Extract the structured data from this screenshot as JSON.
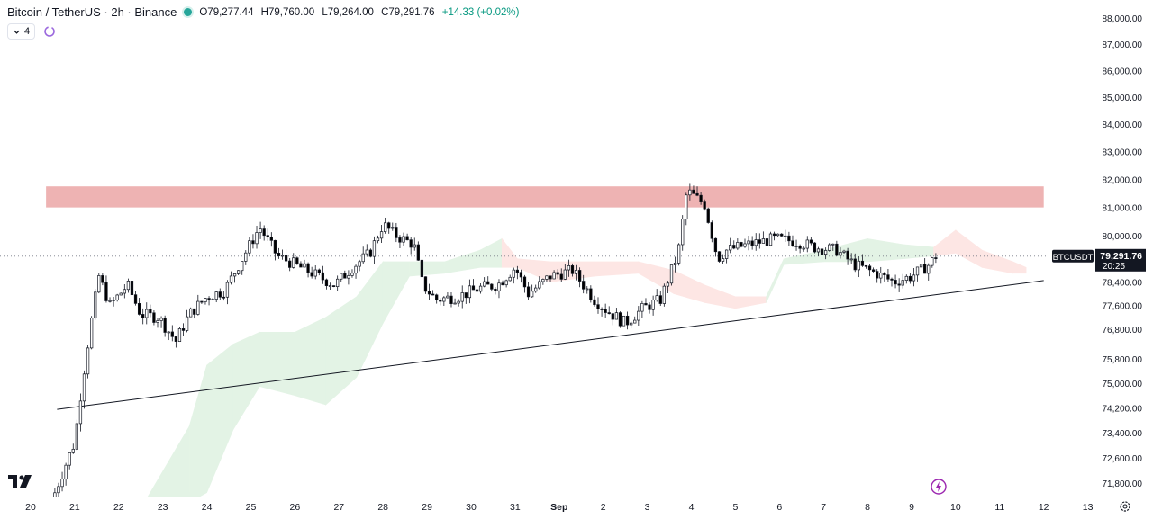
{
  "header": {
    "symbol_title": "Bitcoin / TetherUS · 2h · Binance",
    "open": "O79,277.44",
    "high": "H79,760.00",
    "low": "L79,264.00",
    "close": "C79,291.76",
    "change": "+14.33 (+0.02%)",
    "indicator_count": "4"
  },
  "price_tag": {
    "ticker": "BTCUSDT",
    "price": "79,291.76",
    "countdown": "20:25"
  },
  "colors": {
    "up": "#26a69a",
    "down": "#000000",
    "resistance_zone": "#eeb3b3",
    "cloud_bull": "#e3f3e5",
    "cloud_bear": "#fde6e4",
    "price_tag_bg": "#131722"
  },
  "chart_data": {
    "type": "candlestick",
    "title": "",
    "y_scale": "log",
    "ylim": [
      71000,
      88500
    ],
    "y_ticks": [
      {
        "value": 88000,
        "label": "88,000.00"
      },
      {
        "value": 87000,
        "label": "87,000.00"
      },
      {
        "value": 86000,
        "label": "86,000.00"
      },
      {
        "value": 85000,
        "label": "85,000.00"
      },
      {
        "value": 84000,
        "label": "84,000.00"
      },
      {
        "value": 83000,
        "label": "83,000.00"
      },
      {
        "value": 82000,
        "label": "82,000.00"
      },
      {
        "value": 81000,
        "label": "81,000.00"
      },
      {
        "value": 80000,
        "label": "80,000.00"
      },
      {
        "value": 78400,
        "label": "78,400.00"
      },
      {
        "value": 77600,
        "label": "77,600.00"
      },
      {
        "value": 76800,
        "label": "76,800.00"
      },
      {
        "value": 75800,
        "label": "75,800.00"
      },
      {
        "value": 75000,
        "label": "75,000.00"
      },
      {
        "value": 74200,
        "label": "74,200.00"
      },
      {
        "value": 73400,
        "label": "73,400.00"
      },
      {
        "value": 72600,
        "label": "72,600.00"
      },
      {
        "value": 71800,
        "label": "71,800.00"
      }
    ],
    "x_ticks": [
      {
        "day": 0,
        "label": "20"
      },
      {
        "day": 1,
        "label": "21"
      },
      {
        "day": 2,
        "label": "22"
      },
      {
        "day": 3,
        "label": "23"
      },
      {
        "day": 4,
        "label": "24"
      },
      {
        "day": 5,
        "label": "25"
      },
      {
        "day": 6,
        "label": "26"
      },
      {
        "day": 7,
        "label": "27"
      },
      {
        "day": 8,
        "label": "28"
      },
      {
        "day": 9,
        "label": "29"
      },
      {
        "day": 10,
        "label": "30"
      },
      {
        "day": 11,
        "label": "31"
      },
      {
        "day": 12,
        "label": "Sep"
      },
      {
        "day": 13,
        "label": "2"
      },
      {
        "day": 14,
        "label": "3"
      },
      {
        "day": 15,
        "label": "4"
      },
      {
        "day": 16,
        "label": "5"
      },
      {
        "day": 17,
        "label": "6"
      },
      {
        "day": 18,
        "label": "7"
      },
      {
        "day": 19,
        "label": "8"
      },
      {
        "day": 20,
        "label": "9"
      },
      {
        "day": 21,
        "label": "10"
      },
      {
        "day": 22,
        "label": "11"
      },
      {
        "day": 23,
        "label": "12"
      },
      {
        "day": 24,
        "label": "13"
      }
    ],
    "last_price": 79291.76,
    "resistance_zone": {
      "from": 81000,
      "to": 81750,
      "x_from": 0.35,
      "x_to": 23.0
    },
    "trendline": {
      "x1": 0.6,
      "y1": 74150,
      "x2": 23.0,
      "y2": 78450
    },
    "close_waypoints": [
      [
        0.55,
        71500
      ],
      [
        0.8,
        72400
      ],
      [
        1.0,
        73100
      ],
      [
        1.15,
        74800
      ],
      [
        1.35,
        76800
      ],
      [
        1.55,
        78600
      ],
      [
        1.8,
        77600
      ],
      [
        2.2,
        78300
      ],
      [
        2.5,
        77300
      ],
      [
        2.9,
        77200
      ],
      [
        3.3,
        76400
      ],
      [
        3.6,
        77300
      ],
      [
        4.0,
        77900
      ],
      [
        4.4,
        78100
      ],
      [
        4.8,
        79200
      ],
      [
        5.2,
        80300
      ],
      [
        5.6,
        79300
      ],
      [
        6.0,
        79000
      ],
      [
        6.4,
        78700
      ],
      [
        6.9,
        78300
      ],
      [
        7.3,
        78900
      ],
      [
        7.7,
        79400
      ],
      [
        8.0,
        80400
      ],
      [
        8.3,
        80000
      ],
      [
        8.7,
        79700
      ],
      [
        8.9,
        78300
      ],
      [
        9.2,
        77800
      ],
      [
        9.7,
        77900
      ],
      [
        10.2,
        78200
      ],
      [
        10.6,
        78300
      ],
      [
        11.0,
        78900
      ],
      [
        11.3,
        78000
      ],
      [
        11.8,
        78600
      ],
      [
        12.3,
        78800
      ],
      [
        12.8,
        77800
      ],
      [
        13.1,
        77400
      ],
      [
        13.5,
        77000
      ],
      [
        13.9,
        77500
      ],
      [
        14.3,
        77800
      ],
      [
        14.7,
        79400
      ],
      [
        14.9,
        81600
      ],
      [
        15.3,
        81100
      ],
      [
        15.6,
        79200
      ],
      [
        15.8,
        79500
      ],
      [
        16.3,
        79700
      ],
      [
        16.9,
        79900
      ],
      [
        17.4,
        79800
      ],
      [
        17.8,
        79600
      ],
      [
        18.3,
        79500
      ],
      [
        18.7,
        79000
      ],
      [
        19.2,
        78700
      ],
      [
        19.6,
        78400
      ],
      [
        20.0,
        78600
      ],
      [
        20.4,
        79000
      ],
      [
        20.55,
        79292
      ]
    ],
    "cloud": [
      [
        2.5,
        71000,
        71000,
        "bull"
      ],
      [
        3.6,
        73600,
        71200,
        "bull"
      ],
      [
        4.0,
        75600,
        71500,
        "bull"
      ],
      [
        4.6,
        76300,
        73500,
        "bull"
      ],
      [
        5.2,
        76700,
        74900,
        "bull"
      ],
      [
        6.0,
        76700,
        74600,
        "bull"
      ],
      [
        6.7,
        77200,
        74300,
        "bull"
      ],
      [
        7.4,
        77900,
        75200,
        "bull"
      ],
      [
        8.0,
        79100,
        77000,
        "bull"
      ],
      [
        8.6,
        79100,
        78600,
        "bull"
      ],
      [
        9.4,
        79100,
        78700,
        "bull"
      ],
      [
        10.2,
        79500,
        78900,
        "bull"
      ],
      [
        10.7,
        79900,
        78900,
        "bull"
      ],
      [
        11.05,
        79200,
        78900,
        "bear"
      ],
      [
        11.8,
        79100,
        78400,
        "bear"
      ],
      [
        12.8,
        79100,
        78600,
        "bear"
      ],
      [
        13.8,
        79100,
        78700,
        "bear"
      ],
      [
        14.6,
        78800,
        78000,
        "bear"
      ],
      [
        15.3,
        78300,
        77700,
        "bear"
      ],
      [
        16.0,
        77900,
        77500,
        "bear"
      ],
      [
        16.7,
        77900,
        77700,
        "bear"
      ],
      [
        17.1,
        79200,
        79000,
        "bull"
      ],
      [
        18.0,
        79500,
        79100,
        "bull"
      ],
      [
        19.0,
        79900,
        79100,
        "bull"
      ],
      [
        19.8,
        79700,
        79200,
        "bull"
      ],
      [
        20.5,
        79600,
        79300,
        "bull"
      ],
      [
        21.0,
        80200,
        79400,
        "bear"
      ],
      [
        21.6,
        79500,
        78900,
        "bear"
      ],
      [
        22.3,
        79100,
        78700,
        "bear"
      ],
      [
        22.6,
        78900,
        78700,
        "bear"
      ]
    ]
  }
}
